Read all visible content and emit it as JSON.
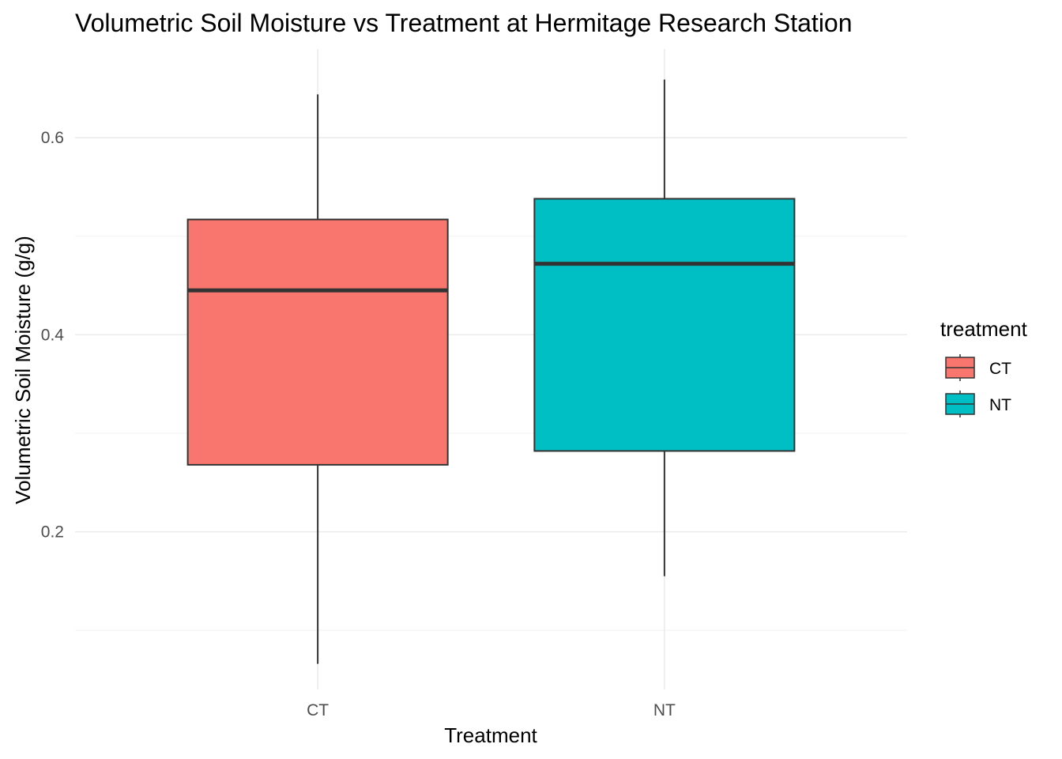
{
  "chart_data": {
    "type": "boxplot",
    "title": "Volumetric Soil Moisture vs Treatment at Hermitage Research Station",
    "xlabel": "Treatment",
    "ylabel": "Volumetric Soil Moisture (g/g)",
    "categories": [
      "CT",
      "NT"
    ],
    "ylim": [
      0.04,
      0.69
    ],
    "y_ticks": [
      0.2,
      0.4,
      0.6
    ],
    "y_tick_labels": [
      "0.2",
      "0.4",
      "0.6"
    ],
    "y_minor_ticks": [
      0.1,
      0.3,
      0.5
    ],
    "grid": true,
    "series": [
      {
        "category": "CT",
        "min": 0.066,
        "q1": 0.268,
        "median": 0.445,
        "q3": 0.517,
        "max": 0.644,
        "color": "#F8766D"
      },
      {
        "category": "NT",
        "min": 0.155,
        "q1": 0.282,
        "median": 0.472,
        "q3": 0.538,
        "max": 0.659,
        "color": "#00BFC4"
      }
    ],
    "legend": {
      "title": "treatment",
      "placement": "right",
      "items": [
        {
          "label": "CT",
          "color": "#F8766D"
        },
        {
          "label": "NT",
          "color": "#00BFC4"
        }
      ]
    }
  }
}
